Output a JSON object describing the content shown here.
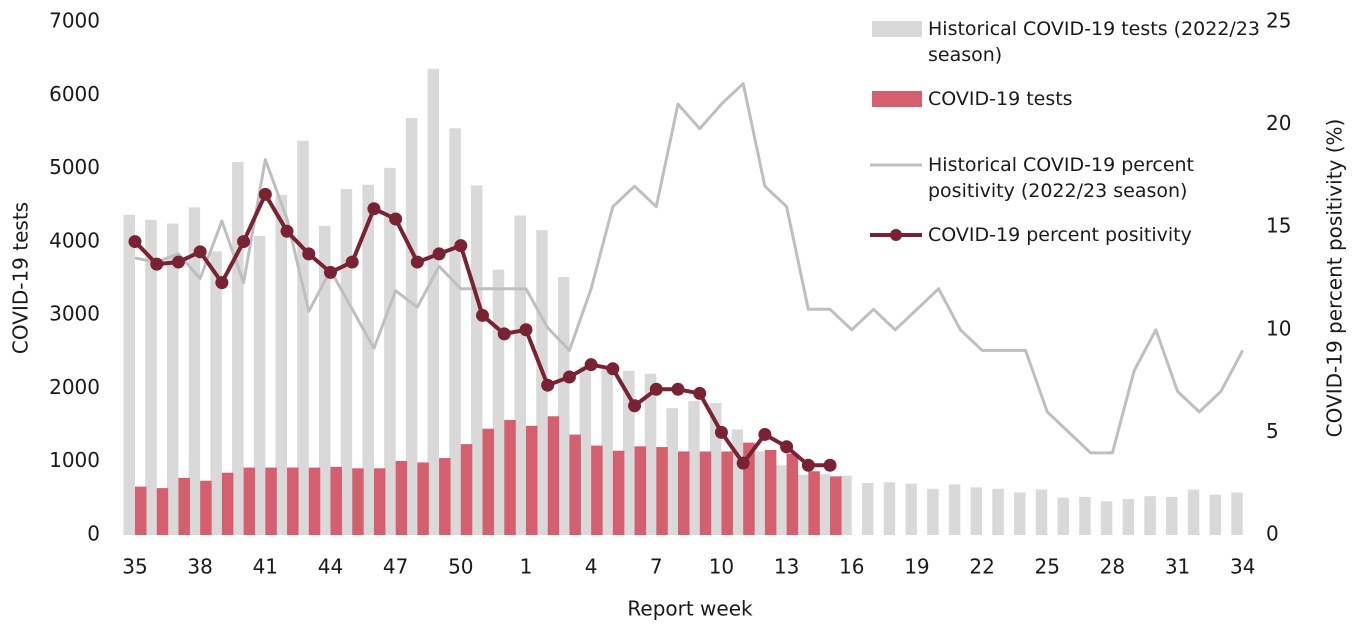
{
  "chart_data": {
    "type": "bar",
    "xlabel": "Report week",
    "ylabel": "COVID-19 tests",
    "y2label": "COVID-19 percent positivity (%)",
    "categories": [
      "35",
      null,
      null,
      "38",
      null,
      null,
      "41",
      null,
      null,
      "44",
      null,
      null,
      "47",
      null,
      null,
      "50",
      null,
      null,
      "1",
      null,
      null,
      "4",
      null,
      null,
      "7",
      null,
      null,
      "10",
      null,
      null,
      "13",
      null,
      null,
      "16",
      null,
      null,
      "19",
      null,
      null,
      "22",
      null,
      null,
      "25",
      null,
      null,
      "28",
      null,
      null,
      "31",
      null,
      null,
      "34"
    ],
    "ylim": [
      0,
      7000
    ],
    "yticks": [
      0,
      1000,
      2000,
      3000,
      4000,
      5000,
      6000,
      7000
    ],
    "y2lim": [
      0,
      25
    ],
    "y2ticks": [
      0,
      5,
      10,
      15,
      20,
      25
    ],
    "grid": false,
    "legend": "top-right",
    "series": [
      {
        "name": "Historical COVID-19 tests (2022/23 season)",
        "type": "bar",
        "color": "#d9d9d9",
        "values": [
          4370,
          4300,
          4250,
          4470,
          3870,
          5090,
          4080,
          4640,
          5380,
          4220,
          4720,
          4780,
          5010,
          5690,
          6360,
          5550,
          4770,
          3620,
          4360,
          4160,
          3520,
          2300,
          2260,
          2240,
          2200,
          1730,
          1830,
          1800,
          1440,
          1140,
          950,
          820,
          830,
          810,
          710,
          720,
          700,
          630,
          690,
          650,
          630,
          580,
          620,
          510,
          520,
          460,
          490,
          530,
          520,
          620,
          550,
          580
        ]
      },
      {
        "name": "COVID-19 tests",
        "type": "bar",
        "color": "#d45f6e",
        "values": [
          660,
          640,
          780,
          740,
          850,
          920,
          920,
          920,
          920,
          930,
          910,
          910,
          1010,
          990,
          1050,
          1240,
          1450,
          1570,
          1490,
          1620,
          1370,
          1220,
          1150,
          1210,
          1200,
          1140,
          1140,
          1140,
          1260,
          1160,
          1110,
          870,
          800,
          null,
          null,
          null,
          null,
          null,
          null,
          null,
          null,
          null,
          null,
          null,
          null,
          null,
          null,
          null,
          null,
          null,
          null,
          null
        ]
      },
      {
        "name": "Historical COVID-19 percent positivity (2022/23 season)",
        "type": "line",
        "axis": "y2",
        "color": "#bfbfbf",
        "markers": false,
        "values": [
          13.5,
          13.3,
          13.7,
          12.5,
          15.3,
          12.3,
          18.3,
          15.4,
          10.9,
          12.9,
          11.0,
          9.1,
          11.9,
          11.1,
          13.1,
          12.0,
          12.0,
          12.0,
          12.0,
          10.1,
          9.0,
          12.0,
          16.0,
          17.0,
          16.0,
          21.0,
          19.8,
          21.0,
          22.0,
          17.0,
          16.0,
          11.0,
          11.0,
          10.0,
          11.0,
          10.0,
          11.0,
          12.0,
          10.0,
          9.0,
          9.0,
          9.0,
          6.0,
          5.0,
          4.0,
          4.0,
          8.0,
          10.0,
          7.0,
          6.0,
          7.0,
          9.0
        ]
      },
      {
        "name": "COVID-19 percent positivity",
        "type": "line",
        "axis": "y2",
        "color": "#7b2232",
        "markers": true,
        "values": [
          14.3,
          13.2,
          13.3,
          13.8,
          12.3,
          14.3,
          16.6,
          14.8,
          13.7,
          12.8,
          13.3,
          15.9,
          15.4,
          13.3,
          13.7,
          14.1,
          10.7,
          9.8,
          10.0,
          7.3,
          7.7,
          8.3,
          8.1,
          6.3,
          7.1,
          7.1,
          6.9,
          5.0,
          3.5,
          4.9,
          4.3,
          3.4,
          3.4,
          null,
          null,
          null,
          null,
          null,
          null,
          null,
          null,
          null,
          null,
          null,
          null,
          null,
          null,
          null,
          null,
          null,
          null,
          null
        ]
      }
    ]
  }
}
